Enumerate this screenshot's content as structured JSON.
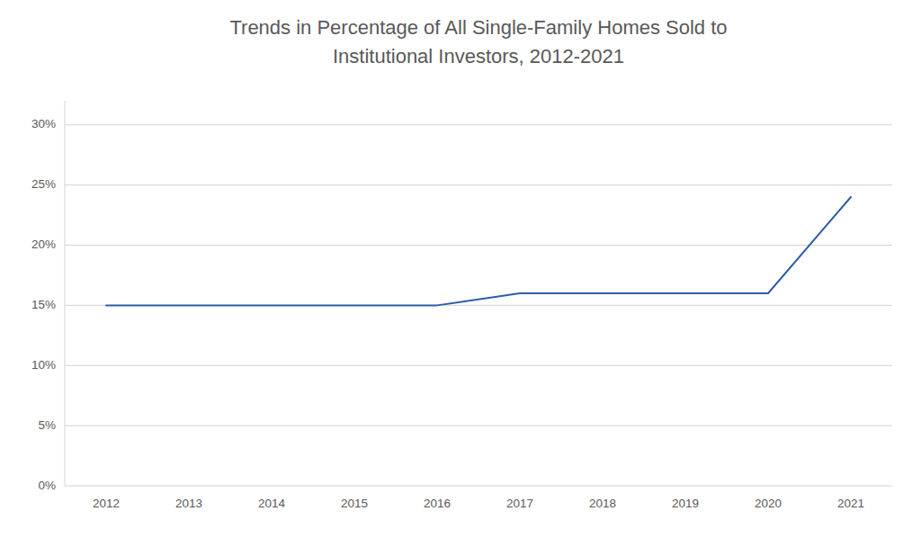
{
  "chart_data": {
    "type": "line",
    "title": "Trends in Percentage of All Single-Family Homes Sold to\nInstitutional Investors, 2012-2021",
    "x": [
      2012,
      2013,
      2014,
      2015,
      2016,
      2017,
      2018,
      2019,
      2020,
      2021
    ],
    "values": [
      0.15,
      0.15,
      0.15,
      0.15,
      0.15,
      0.16,
      0.16,
      0.16,
      0.16,
      0.24
    ],
    "color": "#2E5DA8",
    "xlim": [
      2011.5,
      2021.5
    ],
    "xticks": [
      2012,
      2013,
      2014,
      2015,
      2016,
      2017,
      2018,
      2019,
      2020,
      2021
    ],
    "ylim": [
      0,
      0.32
    ],
    "yticks": [
      {
        "value": 0,
        "label": "0%"
      },
      {
        "value": 0.05,
        "label": "5%"
      },
      {
        "value": 0.1,
        "label": "10%"
      },
      {
        "value": 0.15,
        "label": "15%"
      },
      {
        "value": 0.2,
        "label": "20%"
      },
      {
        "value": 0.25,
        "label": "25%"
      },
      {
        "value": 0.3,
        "label": "30%"
      }
    ],
    "grid": true
  }
}
